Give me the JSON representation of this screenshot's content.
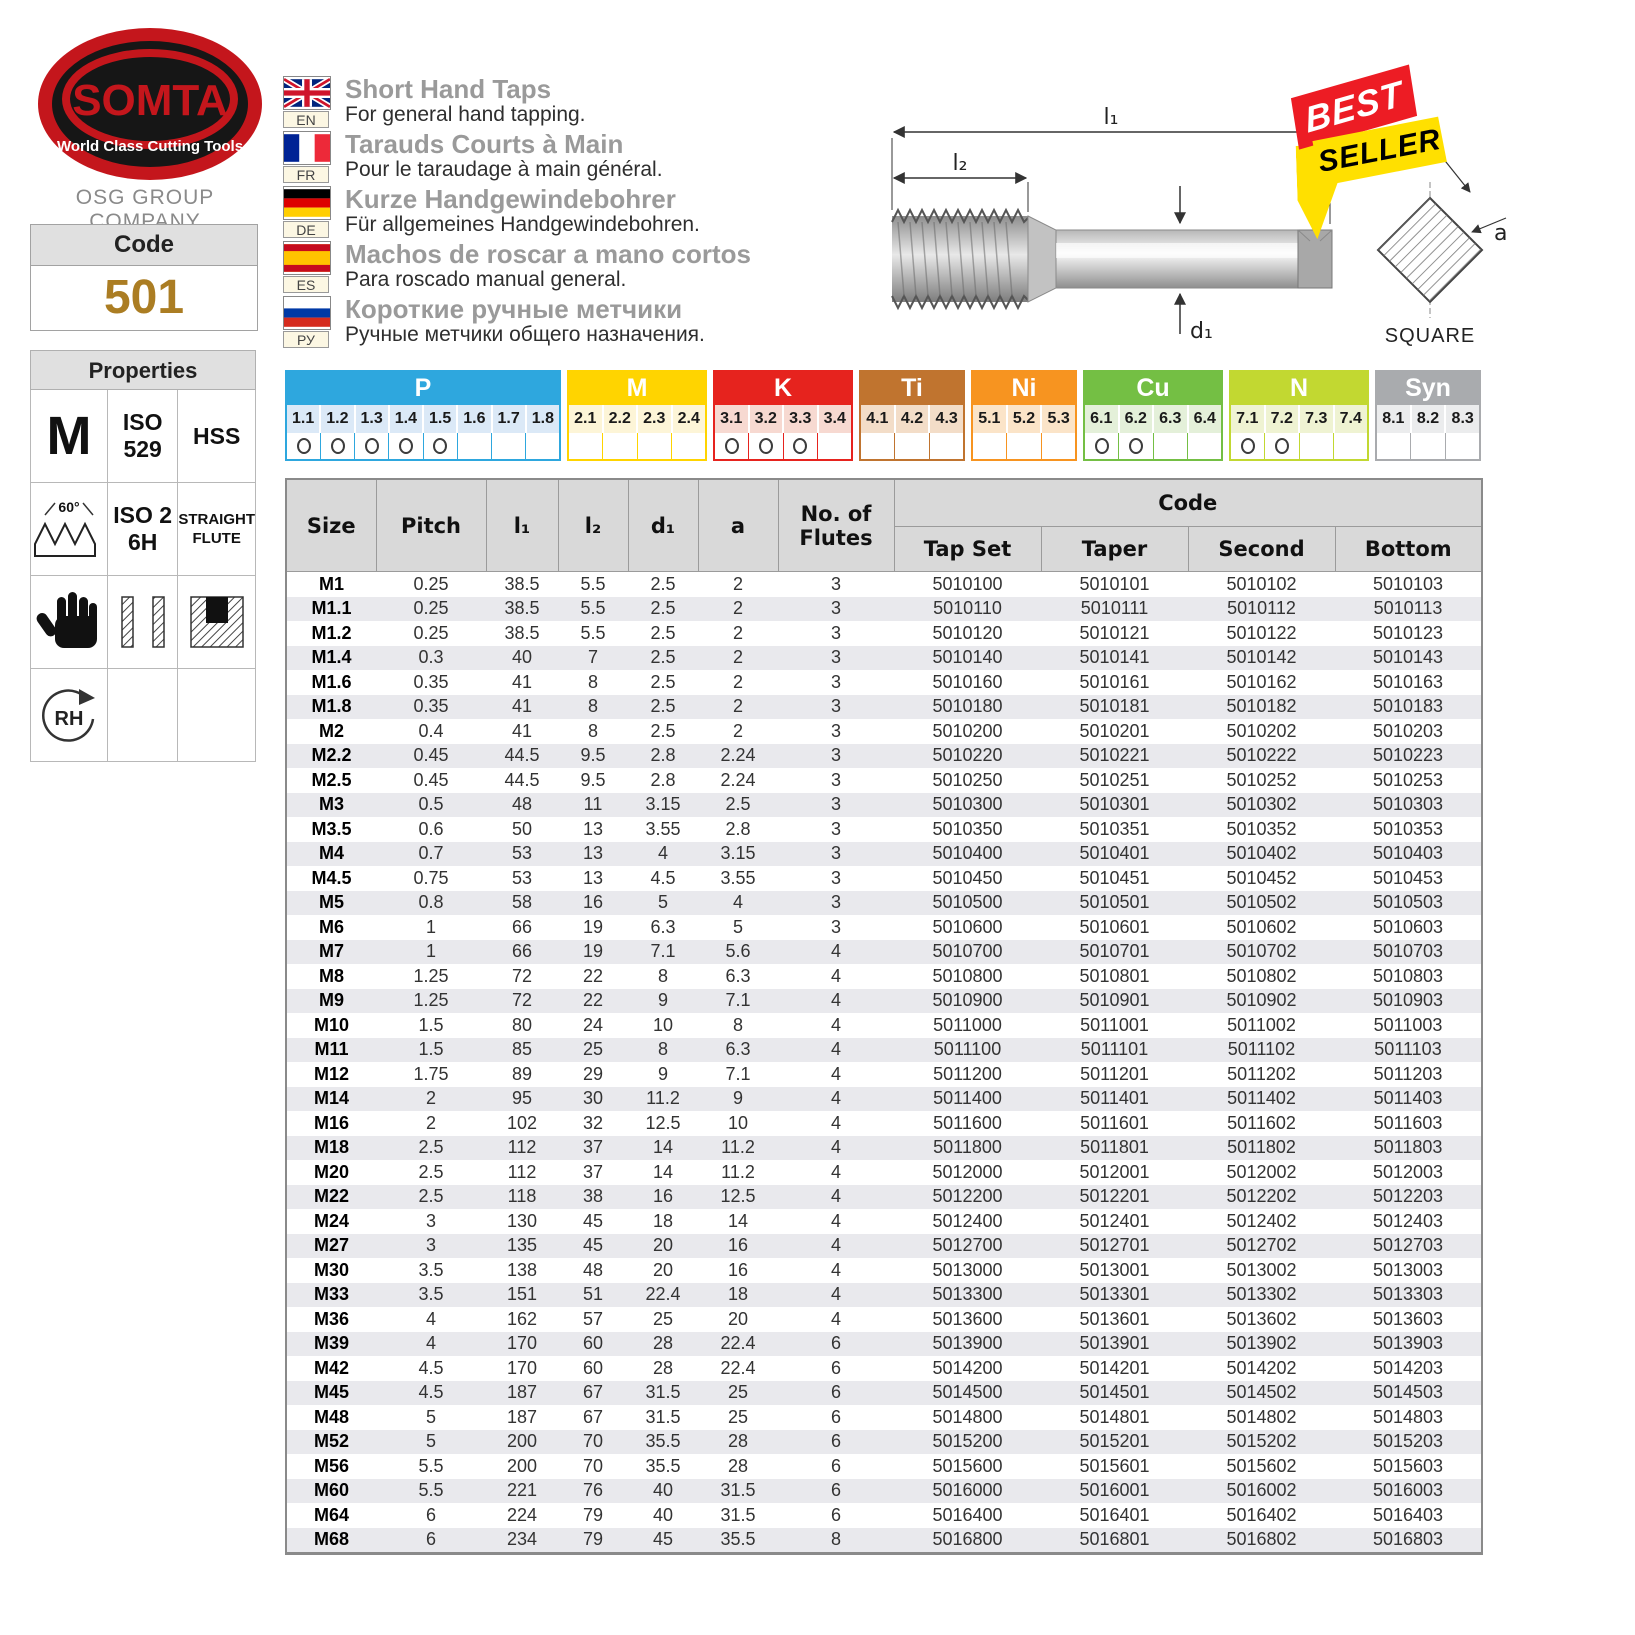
{
  "brand": {
    "name": "SOMTA",
    "tagline": "World Class Cutting Tools",
    "company": "OSG GROUP COMPANY"
  },
  "code_box": {
    "label": "Code",
    "value": "501"
  },
  "properties": {
    "title": "Properties",
    "material": "M",
    "iso": "ISO\n529",
    "hss": "HSS",
    "angle": "60°",
    "tolerance": "ISO 2\n6H",
    "flute": "STRAIGHT\nFLUTE",
    "rotation": "RH"
  },
  "languages": [
    {
      "code": "EN",
      "title": "Short Hand Taps",
      "subtitle": "For general hand tapping."
    },
    {
      "code": "FR",
      "title": "Tarauds Courts à Main",
      "subtitle": "Pour le taraudage à main général."
    },
    {
      "code": "DE",
      "title": "Kurze Handgewindebohrer",
      "subtitle": "Für allgemeines Handgewindebohren."
    },
    {
      "code": "ES",
      "title": "Machos de roscar a mano cortos",
      "subtitle": "Para roscado manual general."
    },
    {
      "code": "РУ",
      "title": "Короткие ручные метчики",
      "subtitle": "Ручные метчики общего назначения."
    }
  ],
  "badge": {
    "top": "BEST",
    "bottom": "SELLER"
  },
  "diagram": {
    "l1": "l₁",
    "l2": "l₂",
    "d1": "d₁",
    "a": "a",
    "square": "SQUARE"
  },
  "material_chart": {
    "groups": [
      {
        "name": "P",
        "color": "#2ea7de",
        "tint": "#dbe9f7",
        "columns": [
          "1.1",
          "1.2",
          "1.3",
          "1.4",
          "1.5",
          "1.6",
          "1.7",
          "1.8"
        ],
        "marked": [
          "1.1",
          "1.2",
          "1.3",
          "1.4",
          "1.5"
        ]
      },
      {
        "name": "M",
        "color": "#ffd400",
        "tint": "#fdf5d7",
        "columns": [
          "2.1",
          "2.2",
          "2.3",
          "2.4"
        ],
        "marked": []
      },
      {
        "name": "K",
        "color": "#e6231e",
        "tint": "#f7d9d1",
        "columns": [
          "3.1",
          "3.2",
          "3.3",
          "3.4"
        ],
        "marked": [
          "3.1",
          "3.2",
          "3.3"
        ]
      },
      {
        "name": "Ti",
        "color": "#c0742f",
        "tint": "#f3ddc8",
        "columns": [
          "4.1",
          "4.2",
          "4.3"
        ],
        "marked": []
      },
      {
        "name": "Ni",
        "color": "#f79420",
        "tint": "#fbe4c8",
        "columns": [
          "5.1",
          "5.2",
          "5.3"
        ],
        "marked": []
      },
      {
        "name": "Cu",
        "color": "#74bf44",
        "tint": "#e4f0d9",
        "columns": [
          "6.1",
          "6.2",
          "6.3",
          "6.4"
        ],
        "marked": [
          "6.1",
          "6.2"
        ]
      },
      {
        "name": "N",
        "color": "#c2d831",
        "tint": "#eff3d2",
        "columns": [
          "7.1",
          "7.2",
          "7.3",
          "7.4"
        ],
        "marked": [
          "7.1",
          "7.2"
        ]
      },
      {
        "name": "Syn",
        "color": "#a9abae",
        "tint": "#ebeced",
        "columns": [
          "8.1",
          "8.2",
          "8.3"
        ],
        "marked": []
      }
    ]
  },
  "table": {
    "headers": {
      "size": "Size",
      "pitch": "Pitch",
      "l1": "l₁",
      "l2": "l₂",
      "d1": "d₁",
      "a": "a",
      "flutes": "No. of\nFlutes",
      "code": "Code",
      "tap_set": "Tap Set",
      "taper": "Taper",
      "second": "Second",
      "bottom": "Bottom"
    },
    "rows": [
      [
        "M1",
        "0.25",
        "38.5",
        "5.5",
        "2.5",
        "2",
        "3",
        "5010100",
        "5010101",
        "5010102",
        "5010103"
      ],
      [
        "M1.1",
        "0.25",
        "38.5",
        "5.5",
        "2.5",
        "2",
        "3",
        "5010110",
        "5010111",
        "5010112",
        "5010113"
      ],
      [
        "M1.2",
        "0.25",
        "38.5",
        "5.5",
        "2.5",
        "2",
        "3",
        "5010120",
        "5010121",
        "5010122",
        "5010123"
      ],
      [
        "M1.4",
        "0.3",
        "40",
        "7",
        "2.5",
        "2",
        "3",
        "5010140",
        "5010141",
        "5010142",
        "5010143"
      ],
      [
        "M1.6",
        "0.35",
        "41",
        "8",
        "2.5",
        "2",
        "3",
        "5010160",
        "5010161",
        "5010162",
        "5010163"
      ],
      [
        "M1.8",
        "0.35",
        "41",
        "8",
        "2.5",
        "2",
        "3",
        "5010180",
        "5010181",
        "5010182",
        "5010183"
      ],
      [
        "M2",
        "0.4",
        "41",
        "8",
        "2.5",
        "2",
        "3",
        "5010200",
        "5010201",
        "5010202",
        "5010203"
      ],
      [
        "M2.2",
        "0.45",
        "44.5",
        "9.5",
        "2.8",
        "2.24",
        "3",
        "5010220",
        "5010221",
        "5010222",
        "5010223"
      ],
      [
        "M2.5",
        "0.45",
        "44.5",
        "9.5",
        "2.8",
        "2.24",
        "3",
        "5010250",
        "5010251",
        "5010252",
        "5010253"
      ],
      [
        "M3",
        "0.5",
        "48",
        "11",
        "3.15",
        "2.5",
        "3",
        "5010300",
        "5010301",
        "5010302",
        "5010303"
      ],
      [
        "M3.5",
        "0.6",
        "50",
        "13",
        "3.55",
        "2.8",
        "3",
        "5010350",
        "5010351",
        "5010352",
        "5010353"
      ],
      [
        "M4",
        "0.7",
        "53",
        "13",
        "4",
        "3.15",
        "3",
        "5010400",
        "5010401",
        "5010402",
        "5010403"
      ],
      [
        "M4.5",
        "0.75",
        "53",
        "13",
        "4.5",
        "3.55",
        "3",
        "5010450",
        "5010451",
        "5010452",
        "5010453"
      ],
      [
        "M5",
        "0.8",
        "58",
        "16",
        "5",
        "4",
        "3",
        "5010500",
        "5010501",
        "5010502",
        "5010503"
      ],
      [
        "M6",
        "1",
        "66",
        "19",
        "6.3",
        "5",
        "3",
        "5010600",
        "5010601",
        "5010602",
        "5010603"
      ],
      [
        "M7",
        "1",
        "66",
        "19",
        "7.1",
        "5.6",
        "4",
        "5010700",
        "5010701",
        "5010702",
        "5010703"
      ],
      [
        "M8",
        "1.25",
        "72",
        "22",
        "8",
        "6.3",
        "4",
        "5010800",
        "5010801",
        "5010802",
        "5010803"
      ],
      [
        "M9",
        "1.25",
        "72",
        "22",
        "9",
        "7.1",
        "4",
        "5010900",
        "5010901",
        "5010902",
        "5010903"
      ],
      [
        "M10",
        "1.5",
        "80",
        "24",
        "10",
        "8",
        "4",
        "5011000",
        "5011001",
        "5011002",
        "5011003"
      ],
      [
        "M11",
        "1.5",
        "85",
        "25",
        "8",
        "6.3",
        "4",
        "5011100",
        "5011101",
        "5011102",
        "5011103"
      ],
      [
        "M12",
        "1.75",
        "89",
        "29",
        "9",
        "7.1",
        "4",
        "5011200",
        "5011201",
        "5011202",
        "5011203"
      ],
      [
        "M14",
        "2",
        "95",
        "30",
        "11.2",
        "9",
        "4",
        "5011400",
        "5011401",
        "5011402",
        "5011403"
      ],
      [
        "M16",
        "2",
        "102",
        "32",
        "12.5",
        "10",
        "4",
        "5011600",
        "5011601",
        "5011602",
        "5011603"
      ],
      [
        "M18",
        "2.5",
        "112",
        "37",
        "14",
        "11.2",
        "4",
        "5011800",
        "5011801",
        "5011802",
        "5011803"
      ],
      [
        "M20",
        "2.5",
        "112",
        "37",
        "14",
        "11.2",
        "4",
        "5012000",
        "5012001",
        "5012002",
        "5012003"
      ],
      [
        "M22",
        "2.5",
        "118",
        "38",
        "16",
        "12.5",
        "4",
        "5012200",
        "5012201",
        "5012202",
        "5012203"
      ],
      [
        "M24",
        "3",
        "130",
        "45",
        "18",
        "14",
        "4",
        "5012400",
        "5012401",
        "5012402",
        "5012403"
      ],
      [
        "M27",
        "3",
        "135",
        "45",
        "20",
        "16",
        "4",
        "5012700",
        "5012701",
        "5012702",
        "5012703"
      ],
      [
        "M30",
        "3.5",
        "138",
        "48",
        "20",
        "16",
        "4",
        "5013000",
        "5013001",
        "5013002",
        "5013003"
      ],
      [
        "M33",
        "3.5",
        "151",
        "51",
        "22.4",
        "18",
        "4",
        "5013300",
        "5013301",
        "5013302",
        "5013303"
      ],
      [
        "M36",
        "4",
        "162",
        "57",
        "25",
        "20",
        "4",
        "5013600",
        "5013601",
        "5013602",
        "5013603"
      ],
      [
        "M39",
        "4",
        "170",
        "60",
        "28",
        "22.4",
        "6",
        "5013900",
        "5013901",
        "5013902",
        "5013903"
      ],
      [
        "M42",
        "4.5",
        "170",
        "60",
        "28",
        "22.4",
        "6",
        "5014200",
        "5014201",
        "5014202",
        "5014203"
      ],
      [
        "M45",
        "4.5",
        "187",
        "67",
        "31.5",
        "25",
        "6",
        "5014500",
        "5014501",
        "5014502",
        "5014503"
      ],
      [
        "M48",
        "5",
        "187",
        "67",
        "31.5",
        "25",
        "6",
        "5014800",
        "5014801",
        "5014802",
        "5014803"
      ],
      [
        "M52",
        "5",
        "200",
        "70",
        "35.5",
        "28",
        "6",
        "5015200",
        "5015201",
        "5015202",
        "5015203"
      ],
      [
        "M56",
        "5.5",
        "200",
        "70",
        "35.5",
        "28",
        "6",
        "5015600",
        "5015601",
        "5015602",
        "5015603"
      ],
      [
        "M60",
        "5.5",
        "221",
        "76",
        "40",
        "31.5",
        "6",
        "5016000",
        "5016001",
        "5016002",
        "5016003"
      ],
      [
        "M64",
        "6",
        "224",
        "79",
        "40",
        "31.5",
        "6",
        "5016400",
        "5016401",
        "5016402",
        "5016403"
      ],
      [
        "M68",
        "6",
        "234",
        "79",
        "45",
        "35.5",
        "8",
        "5016800",
        "5016801",
        "5016802",
        "5016803"
      ]
    ]
  }
}
